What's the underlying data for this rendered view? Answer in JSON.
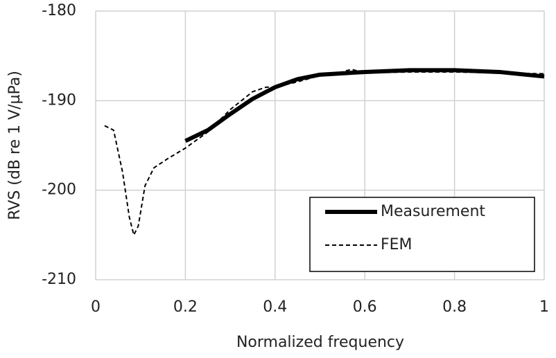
{
  "chart_data": {
    "type": "line",
    "x_label": "Normalized frequency",
    "y_label": "RVS (dB re 1 V/µPa)",
    "xlim": [
      0,
      1
    ],
    "xticks": [
      0,
      0.2,
      0.4,
      0.6,
      0.8,
      1
    ],
    "ylim": [
      -210,
      -180
    ],
    "yticks": [
      -210,
      -200,
      -190,
      -180
    ],
    "grid": true,
    "legend": "lower right",
    "series": [
      {
        "name": "Measurement",
        "color": "#000000",
        "style": "solid",
        "x": [
          0.2,
          0.25,
          0.3,
          0.35,
          0.4,
          0.45,
          0.5,
          0.6,
          0.7,
          0.8,
          0.9,
          1.0
        ],
        "values": [
          -194.5,
          -193.3,
          -191.5,
          -189.8,
          -188.5,
          -187.6,
          -187.1,
          -186.8,
          -186.6,
          -186.6,
          -186.8,
          -187.3
        ]
      },
      {
        "name": "FEM",
        "color": "#000000",
        "style": "dashed",
        "x": [
          0.02,
          0.04,
          0.06,
          0.075,
          0.085,
          0.095,
          0.11,
          0.13,
          0.16,
          0.2,
          0.25,
          0.3,
          0.35,
          0.38,
          0.4,
          0.45,
          0.5,
          0.55,
          0.57,
          0.6,
          0.7,
          0.8,
          0.9,
          1.0
        ],
        "values": [
          -192.8,
          -193.3,
          -198,
          -203,
          -205,
          -204,
          -199.5,
          -197.5,
          -196.5,
          -195.3,
          -193.5,
          -191,
          -189,
          -188.5,
          -188.5,
          -187.9,
          -187.2,
          -186.8,
          -186.5,
          -186.9,
          -186.8,
          -186.8,
          -186.9,
          -187.0
        ]
      }
    ]
  }
}
